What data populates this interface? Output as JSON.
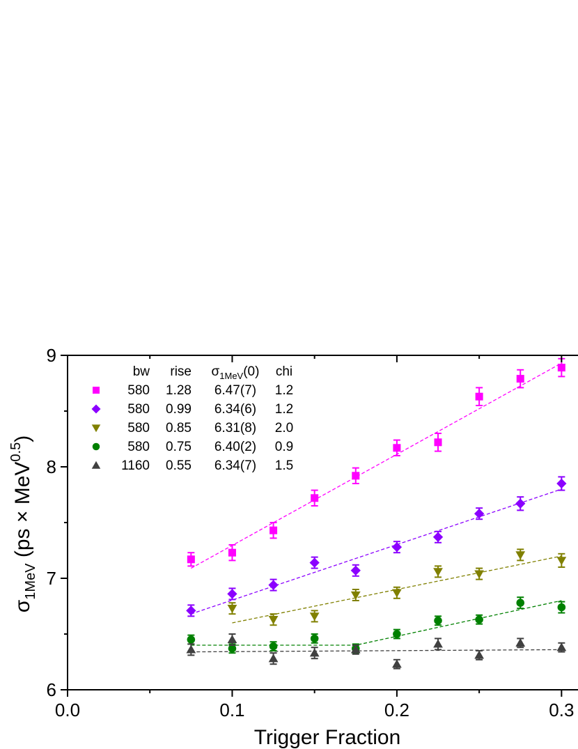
{
  "chart_data": {
    "type": "scatter",
    "xlabel": "Trigger Fraction",
    "ylabel": {
      "base": "σ",
      "sub": "1MeV",
      "open": " (ps × MeV",
      "sup": "0.5",
      "close": ")"
    },
    "xlim": [
      0.0,
      0.3
    ],
    "ylim": [
      6,
      9
    ],
    "x_ticks": [
      {
        "value": 0.0,
        "label": "0.0"
      },
      {
        "value": 0.1,
        "label": "0.1"
      },
      {
        "value": 0.2,
        "label": "0.2"
      },
      {
        "value": 0.3,
        "label": "0.3"
      }
    ],
    "y_ticks": [
      {
        "value": 6,
        "label": "6"
      },
      {
        "value": 7,
        "label": "7"
      },
      {
        "value": 8,
        "label": "8"
      },
      {
        "value": 9,
        "label": "9"
      }
    ],
    "grid": false,
    "legend_position": "top-left",
    "legend_header": {
      "bw": "bw",
      "rise": "rise",
      "sigma_base": "σ",
      "sigma_sub": "1MeV",
      "sigma_rest": "(0)",
      "chi": "chi"
    },
    "series": [
      {
        "marker": "square",
        "color": "#FF00FF",
        "bw": "580",
        "rise": "1.28",
        "sigma": "6.47(7)",
        "chi": "1.2",
        "x": [
          0.075,
          0.1,
          0.125,
          0.15,
          0.175,
          0.2,
          0.225,
          0.25,
          0.275,
          0.3
        ],
        "y": [
          7.17,
          7.23,
          7.43,
          7.72,
          7.92,
          8.17,
          8.22,
          8.63,
          8.79,
          8.89
        ],
        "err": [
          0.06,
          0.07,
          0.07,
          0.07,
          0.07,
          0.07,
          0.08,
          0.08,
          0.08,
          0.08
        ],
        "fit": {
          "x": [
            0.075,
            0.3
          ],
          "y": [
            7.09,
            8.93
          ]
        }
      },
      {
        "marker": "diamond",
        "color": "#8B00FF",
        "bw": "580",
        "rise": "0.99",
        "sigma": "6.34(6)",
        "chi": "1.2",
        "x": [
          0.075,
          0.1,
          0.125,
          0.15,
          0.175,
          0.2,
          0.225,
          0.25,
          0.275,
          0.3
        ],
        "y": [
          6.71,
          6.86,
          6.94,
          7.14,
          7.07,
          7.28,
          7.37,
          7.58,
          7.67,
          7.85
        ],
        "err": [
          0.05,
          0.05,
          0.05,
          0.05,
          0.05,
          0.05,
          0.05,
          0.05,
          0.06,
          0.06
        ],
        "fit": {
          "x": [
            0.075,
            0.3
          ],
          "y": [
            6.68,
            7.8
          ]
        }
      },
      {
        "marker": "triangle-down",
        "color": "#808000",
        "bw": "580",
        "rise": "0.85",
        "sigma": "6.31(8)",
        "chi": "2.0",
        "x": [
          0.1,
          0.125,
          0.15,
          0.175,
          0.2,
          0.225,
          0.25,
          0.275,
          0.3
        ],
        "y": [
          6.73,
          6.63,
          6.66,
          6.85,
          6.87,
          7.06,
          7.04,
          7.21,
          7.16
        ],
        "err": [
          0.05,
          0.05,
          0.05,
          0.05,
          0.05,
          0.05,
          0.05,
          0.05,
          0.06
        ],
        "fit": {
          "x": [
            0.1,
            0.3
          ],
          "y": [
            6.6,
            7.2
          ]
        }
      },
      {
        "marker": "circle",
        "color": "#008000",
        "bw": "580",
        "rise": "0.75",
        "sigma": "6.40(2)",
        "chi": "0.9",
        "x": [
          0.075,
          0.1,
          0.125,
          0.15,
          0.175,
          0.2,
          0.225,
          0.25,
          0.275,
          0.3
        ],
        "y": [
          6.45,
          6.37,
          6.39,
          6.46,
          6.37,
          6.5,
          6.62,
          6.63,
          6.78,
          6.74
        ],
        "err": [
          0.04,
          0.04,
          0.04,
          0.04,
          0.04,
          0.04,
          0.04,
          0.04,
          0.05,
          0.05
        ],
        "fit": {
          "x": [
            0.075,
            0.175,
            0.3
          ],
          "y": [
            6.4,
            6.4,
            6.8
          ]
        }
      },
      {
        "marker": "triangle-up",
        "color": "#404040",
        "bw": "1160",
        "rise": "0.55",
        "sigma": "6.34(7)",
        "chi": "1.5",
        "x": [
          0.075,
          0.1,
          0.125,
          0.15,
          0.175,
          0.2,
          0.225,
          0.25,
          0.275,
          0.3
        ],
        "y": [
          6.36,
          6.45,
          6.28,
          6.33,
          6.36,
          6.23,
          6.41,
          6.31,
          6.42,
          6.38
        ],
        "err": [
          0.05,
          0.05,
          0.05,
          0.05,
          0.04,
          0.04,
          0.05,
          0.04,
          0.04,
          0.04
        ],
        "fit": {
          "x": [
            0.075,
            0.3
          ],
          "y": [
            6.34,
            6.36
          ]
        }
      }
    ]
  }
}
